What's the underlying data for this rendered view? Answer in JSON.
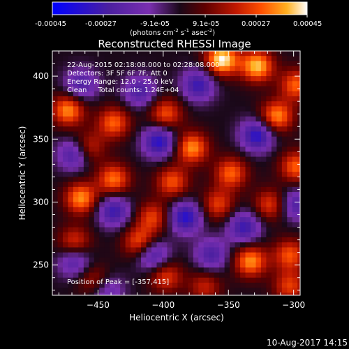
{
  "colorbar": {
    "ticks": [
      "-0.00045",
      "-0.00027",
      "-9.1e-05",
      "9.1e-05",
      "0.00027",
      "0.00045"
    ],
    "units_main": "(photons cm",
    "units_exp1": "-2",
    "units_mid": " s",
    "units_exp2": "-1",
    "units_end": " asec",
    "units_exp3": "-2",
    "units_close": ")"
  },
  "header": {
    "title": "Reconstructed RHESSI Image",
    "info_lines": [
      "22-Aug-2015 02:18:08.000 to 02:28:08.000",
      "Detectors: 3F 5F 6F 7F, Att 0",
      "Energy Range: 12.0 - 25.0 keV",
      "Clean     Total counts: 1.24E+04"
    ],
    "peak_label": "Position of Peak = [-357,415]"
  },
  "footer": {
    "timestamp": "10-Aug-2017 14:15"
  },
  "colors": {
    "axis": "#ffffff",
    "background": "#000000",
    "colormap": [
      "#0000ff",
      "#4b1fa0",
      "#7a2fb0",
      "#1a0818",
      "#600000",
      "#b01000",
      "#ff4500",
      "#ffa000",
      "#ffe040",
      "#ffffff"
    ]
  },
  "chart_data": {
    "type": "heatmap",
    "title": "Reconstructed RHESSI Image",
    "xlabel": "Heliocentric X (arcsec)",
    "ylabel": "Heliocentric Y (arcsec)",
    "xlim": [
      -485,
      -295
    ],
    "ylim": [
      226,
      420
    ],
    "xticks": [
      -450,
      -400,
      -350,
      -300
    ],
    "yticks": [
      250,
      300,
      350,
      400
    ],
    "xtick_labels": [
      "−450",
      "−400",
      "−350",
      "−300"
    ],
    "ytick_labels": [
      "250",
      "300",
      "350",
      "400"
    ],
    "colorbar_range": [
      -0.00045,
      0.00045
    ],
    "peak_position": [
      -357,
      415
    ],
    "grid": false,
    "image_grid": {
      "x_start": -485,
      "x_step": 4,
      "nx": 48,
      "y_start": 420,
      "y_step": -4,
      "ny": 49
    },
    "hot_spots": [
      [
        -357,
        415,
        0.00045
      ],
      [
        -330,
        410,
        0.0004
      ],
      [
        -300,
        395,
        0.0003
      ],
      [
        -315,
        370,
        0.00035
      ],
      [
        -475,
        375,
        0.00035
      ],
      [
        -440,
        365,
        0.0003
      ],
      [
        -400,
        372,
        0.00028
      ],
      [
        -380,
        345,
        0.00035
      ],
      [
        -460,
        345,
        0.00025
      ],
      [
        -440,
        320,
        0.00032
      ],
      [
        -395,
        318,
        0.00028
      ],
      [
        -350,
        325,
        0.0003
      ],
      [
        -300,
        330,
        0.0003
      ],
      [
        -360,
        300,
        0.00025
      ],
      [
        -410,
        290,
        0.00025
      ],
      [
        -465,
        305,
        0.00035
      ],
      [
        -320,
        300,
        0.00025
      ],
      [
        -420,
        270,
        0.0003
      ],
      [
        -470,
        270,
        0.00025
      ],
      [
        -335,
        255,
        0.00035
      ],
      [
        -305,
        260,
        0.00028
      ],
      [
        -400,
        243,
        0.00025
      ],
      [
        -455,
        240,
        0.0002
      ],
      [
        -305,
        235,
        0.00025
      ],
      [
        -370,
        235,
        0.0002
      ]
    ],
    "cold_spots": [
      [
        -375,
        395,
        -0.0003
      ],
      [
        -420,
        390,
        -0.00025
      ],
      [
        -465,
        395,
        -0.00025
      ],
      [
        -405,
        350,
        -0.00035
      ],
      [
        -330,
        355,
        -0.00035
      ],
      [
        -470,
        340,
        -0.0003
      ],
      [
        -440,
        295,
        -0.0003
      ],
      [
        -385,
        290,
        -0.00035
      ],
      [
        -340,
        282,
        -0.0003
      ],
      [
        -410,
        260,
        -0.0003
      ],
      [
        -470,
        255,
        -0.00025
      ],
      [
        -365,
        260,
        -0.00025
      ],
      [
        -445,
        232,
        -0.0002
      ],
      [
        -300,
        300,
        -0.00025
      ]
    ]
  }
}
